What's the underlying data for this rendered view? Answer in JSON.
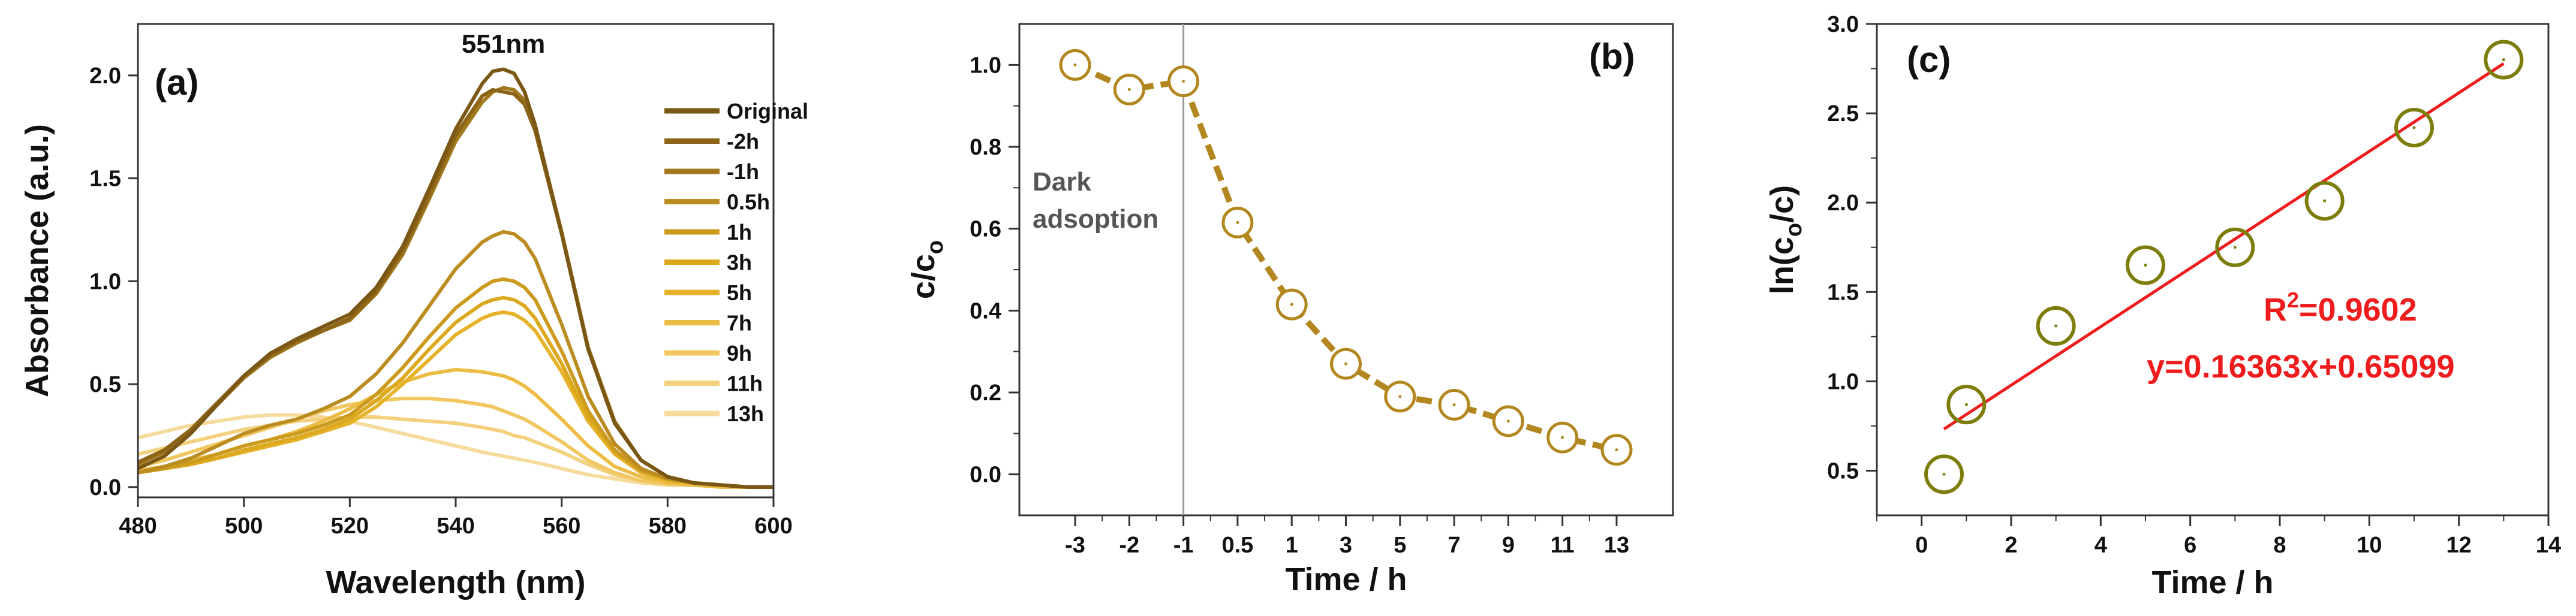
{
  "chart_data": [
    {
      "type": "line",
      "panel_label": "(a)",
      "xlabel": "Wavelength (nm)",
      "ylabel": "Absorbance (a.u.)",
      "xlim": [
        480,
        600
      ],
      "ylim": [
        -0.05,
        2.25
      ],
      "xticks": [
        480,
        500,
        520,
        540,
        560,
        580,
        600
      ],
      "yticks": [
        0.0,
        0.5,
        1.0,
        1.5,
        2.0
      ],
      "ytick_labels": [
        "0.0",
        "0.5",
        "1.0",
        "1.5",
        "2.0"
      ],
      "annotation": "551nm",
      "annotation_x": 549,
      "annotation_y": 2.11,
      "x": [
        480,
        485,
        490,
        495,
        500,
        505,
        510,
        515,
        520,
        525,
        530,
        535,
        540,
        545,
        547,
        549,
        551,
        553,
        555,
        560,
        565,
        570,
        575,
        580,
        585,
        590,
        595,
        600
      ],
      "series": [
        {
          "name": "Original",
          "color": "#7a5714",
          "values": [
            0.09,
            0.15,
            0.26,
            0.4,
            0.54,
            0.65,
            0.72,
            0.78,
            0.84,
            0.97,
            1.17,
            1.45,
            1.74,
            1.96,
            2.02,
            2.03,
            2.01,
            1.92,
            1.76,
            1.23,
            0.67,
            0.31,
            0.13,
            0.05,
            0.02,
            0.01,
            0.0,
            0.0
          ]
        },
        {
          "name": "-2h",
          "color": "#8c6418",
          "values": [
            0.12,
            0.18,
            0.28,
            0.41,
            0.54,
            0.64,
            0.71,
            0.76,
            0.82,
            0.95,
            1.15,
            1.42,
            1.71,
            1.9,
            1.93,
            1.92,
            1.91,
            1.86,
            1.73,
            1.23,
            0.67,
            0.31,
            0.13,
            0.05,
            0.02,
            0.01,
            0.0,
            0.0
          ]
        },
        {
          "name": "-1h",
          "color": "#a2781e",
          "values": [
            0.11,
            0.17,
            0.27,
            0.4,
            0.53,
            0.63,
            0.7,
            0.76,
            0.81,
            0.94,
            1.13,
            1.4,
            1.68,
            1.87,
            1.92,
            1.94,
            1.93,
            1.88,
            1.75,
            1.24,
            0.68,
            0.32,
            0.13,
            0.05,
            0.02,
            0.01,
            0.0,
            0.0
          ]
        },
        {
          "name": "0.5h",
          "color": "#bb8c20",
          "values": [
            0.07,
            0.1,
            0.14,
            0.2,
            0.26,
            0.3,
            0.33,
            0.38,
            0.44,
            0.55,
            0.7,
            0.88,
            1.06,
            1.19,
            1.22,
            1.24,
            1.23,
            1.19,
            1.11,
            0.79,
            0.44,
            0.21,
            0.09,
            0.04,
            0.02,
            0.01,
            0.0,
            0.0
          ]
        },
        {
          "name": "1h",
          "color": "#cc9a1c",
          "values": [
            0.07,
            0.09,
            0.12,
            0.16,
            0.2,
            0.23,
            0.26,
            0.3,
            0.35,
            0.45,
            0.58,
            0.73,
            0.87,
            0.97,
            1.0,
            1.01,
            1.0,
            0.97,
            0.91,
            0.66,
            0.37,
            0.18,
            0.08,
            0.04,
            0.02,
            0.01,
            0.0,
            0.0
          ]
        },
        {
          "name": "3h",
          "color": "#dba81e",
          "values": [
            0.07,
            0.09,
            0.11,
            0.14,
            0.18,
            0.21,
            0.24,
            0.28,
            0.33,
            0.42,
            0.53,
            0.67,
            0.8,
            0.89,
            0.91,
            0.92,
            0.91,
            0.88,
            0.82,
            0.6,
            0.34,
            0.17,
            0.08,
            0.04,
            0.02,
            0.01,
            0.0,
            0.0
          ]
        },
        {
          "name": "5h",
          "color": "#e6b22a",
          "values": [
            0.07,
            0.09,
            0.11,
            0.14,
            0.17,
            0.2,
            0.23,
            0.27,
            0.31,
            0.39,
            0.5,
            0.62,
            0.74,
            0.82,
            0.84,
            0.85,
            0.84,
            0.81,
            0.76,
            0.56,
            0.32,
            0.16,
            0.07,
            0.03,
            0.02,
            0.01,
            0.0,
            0.0
          ]
        },
        {
          "name": "7h",
          "color": "#ecbd44",
          "values": [
            0.08,
            0.1,
            0.13,
            0.16,
            0.2,
            0.23,
            0.27,
            0.32,
            0.38,
            0.45,
            0.51,
            0.55,
            0.57,
            0.56,
            0.55,
            0.54,
            0.52,
            0.49,
            0.45,
            0.33,
            0.2,
            0.1,
            0.05,
            0.02,
            0.01,
            0.0,
            0.0,
            0.0
          ]
        },
        {
          "name": "9h",
          "color": "#f0c761",
          "values": [
            0.1,
            0.13,
            0.17,
            0.21,
            0.25,
            0.29,
            0.33,
            0.37,
            0.4,
            0.42,
            0.43,
            0.43,
            0.42,
            0.4,
            0.39,
            0.37,
            0.35,
            0.33,
            0.3,
            0.22,
            0.13,
            0.07,
            0.03,
            0.02,
            0.01,
            0.0,
            0.0,
            0.0
          ]
        },
        {
          "name": "11h",
          "color": "#f3d17f",
          "values": [
            0.16,
            0.19,
            0.22,
            0.25,
            0.28,
            0.3,
            0.32,
            0.33,
            0.34,
            0.34,
            0.33,
            0.32,
            0.31,
            0.29,
            0.28,
            0.27,
            0.25,
            0.24,
            0.22,
            0.17,
            0.11,
            0.06,
            0.03,
            0.01,
            0.01,
            0.0,
            0.0,
            0.0
          ]
        },
        {
          "name": "13h",
          "color": "#f6dc9c",
          "values": [
            0.24,
            0.27,
            0.3,
            0.32,
            0.34,
            0.35,
            0.35,
            0.34,
            0.32,
            0.29,
            0.26,
            0.23,
            0.2,
            0.17,
            0.16,
            0.15,
            0.14,
            0.13,
            0.12,
            0.09,
            0.06,
            0.04,
            0.02,
            0.01,
            0.01,
            0.0,
            0.0,
            0.0
          ]
        }
      ]
    },
    {
      "type": "line",
      "panel_label": "(b)",
      "xlabel": "Time / h",
      "ylabel_main": "c/c",
      "ylabel_sub": "o",
      "categories": [
        "-3",
        "-2",
        "-1",
        "0.5",
        "1",
        "3",
        "5",
        "7",
        "9",
        "11",
        "13"
      ],
      "values": [
        1.0,
        0.94,
        0.96,
        0.615,
        0.415,
        0.27,
        0.19,
        0.17,
        0.13,
        0.09,
        0.06
      ],
      "ylim": [
        -0.1,
        1.1
      ],
      "yticks": [
        0.0,
        0.2,
        0.4,
        0.6,
        0.8,
        1.0
      ],
      "ytick_labels": [
        "0.0",
        "0.2",
        "0.4",
        "0.6",
        "0.8",
        "1.0"
      ],
      "divider_after_category": "-1",
      "annotation_lines": [
        "Dark",
        "adsoption"
      ],
      "color": "#b3871f"
    },
    {
      "type": "scatter",
      "panel_label": "(c)",
      "xlabel": "Time / h",
      "ylabel_parts": [
        "ln(c",
        "o",
        "/c)"
      ],
      "x": [
        0.5,
        1,
        3,
        5,
        7,
        9,
        11,
        13
      ],
      "y": [
        0.48,
        0.87,
        1.31,
        1.65,
        1.75,
        2.01,
        2.42,
        2.8
      ],
      "xlim": [
        -1,
        14
      ],
      "ylim": [
        0.25,
        3.0
      ],
      "xticks": [
        0,
        2,
        4,
        6,
        8,
        10,
        12,
        14
      ],
      "yticks": [
        0.5,
        1.0,
        1.5,
        2.0,
        2.5,
        3.0
      ],
      "ytick_labels": [
        "0.5",
        "1.0",
        "1.5",
        "2.0",
        "2.5",
        "3.0"
      ],
      "fit": {
        "slope": 0.16363,
        "intercept": 0.65099,
        "x_range": [
          0.5,
          13
        ]
      },
      "r2_prefix": "R",
      "r2_sup": "2",
      "r2_value": "=0.9602",
      "equation": "y=0.16363x+0.65099",
      "marker_color": "#7d7d0c",
      "fit_color": "#ee1c1c"
    }
  ]
}
